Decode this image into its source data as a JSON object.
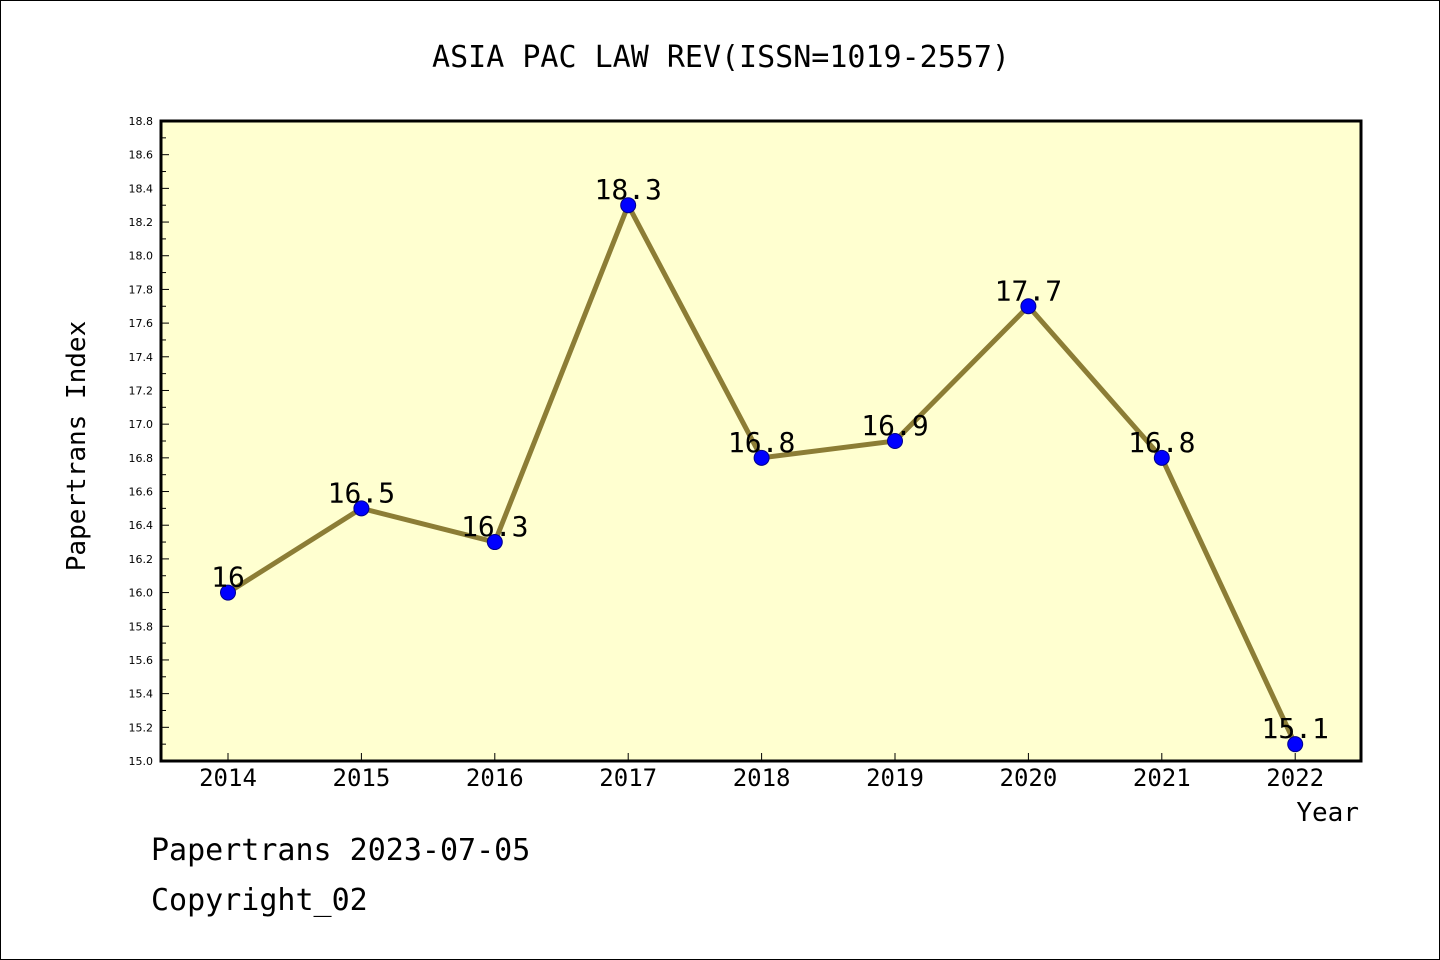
{
  "footer": {
    "line1": "Papertrans 2023-07-05",
    "line2": "Copyright_02"
  },
  "chart_data": {
    "type": "line",
    "title": "ASIA PAC LAW REV(ISSN=1019-2557)",
    "xlabel": "Year",
    "ylabel": "Papertrans Index",
    "x": [
      "2014",
      "2015",
      "2016",
      "2017",
      "2018",
      "2019",
      "2020",
      "2021",
      "2022"
    ],
    "series": [
      {
        "values": [
          16,
          16.5,
          16.3,
          18.3,
          16.8,
          16.9,
          17.7,
          16.8,
          15.1
        ],
        "labels": [
          "16",
          "16.5",
          "16.3",
          "18.3",
          "16.8",
          "16.9",
          "17.7",
          "16.8",
          "15.1"
        ]
      }
    ],
    "ylim": [
      15.0,
      18.8
    ],
    "yticks": [
      "15.0",
      "15.2",
      "15.4",
      "15.6",
      "15.8",
      "16.0",
      "16.2",
      "16.4",
      "16.6",
      "16.8",
      "17.0",
      "17.2",
      "17.4",
      "17.6",
      "17.8",
      "18.0",
      "18.2",
      "18.4",
      "18.6",
      "18.8"
    ],
    "grid": false,
    "legend": "none",
    "colors": {
      "plot_background": "#ffffd0",
      "line": "#8c7d35",
      "marker": "#0000ff",
      "axis": "#000000"
    }
  }
}
